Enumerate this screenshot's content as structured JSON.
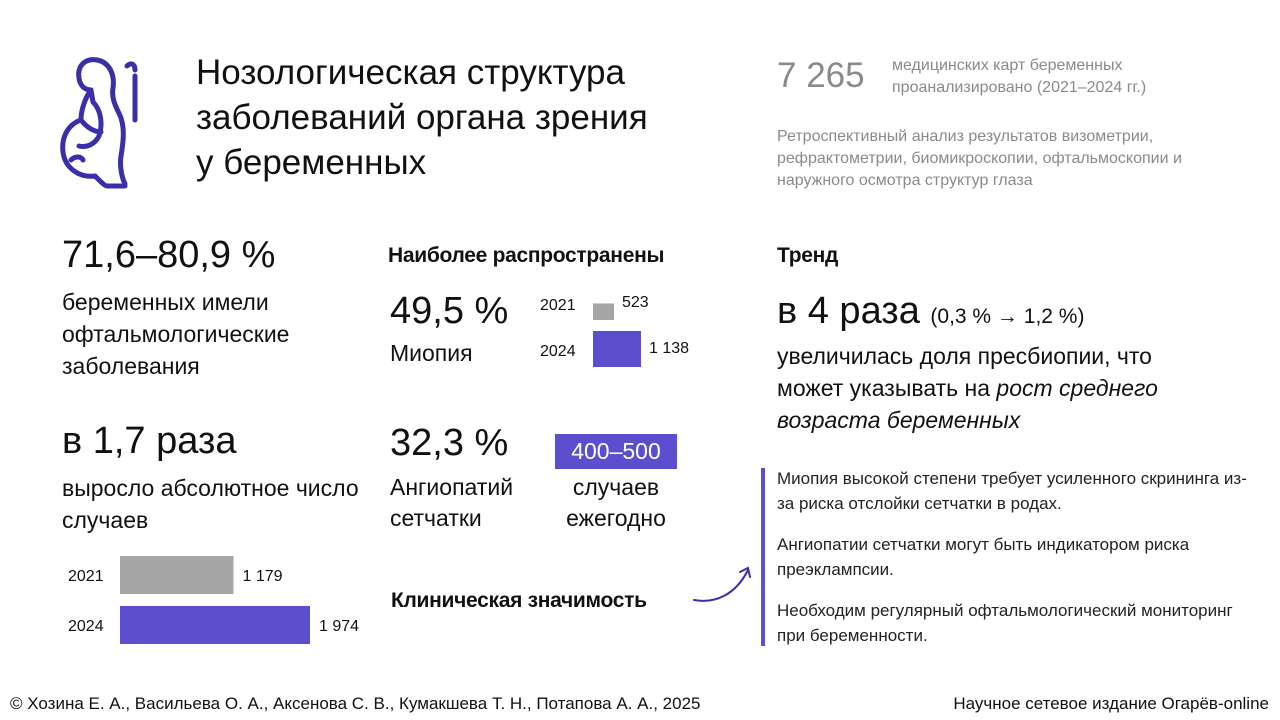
{
  "header": {
    "title_lines": [
      "Нозологическая структура",
      "заболеваний органа зрения",
      "у беременных"
    ],
    "records_count": "7 265",
    "records_desc": "медицинских карт беременных проанализировано (2021–2024 гг.)",
    "method": "Ретроспективный анализ результатов визометрии, рефрактометрии, биомикроскопии, офтальмоскопии и наружного осмотра структур глаза"
  },
  "left": {
    "share_value": "71,6–80,9 %",
    "share_desc": "беременных имели офтальмологические заболевания",
    "growth_value": "в 1,7 раза",
    "growth_desc": "выросло абсолютное число случаев"
  },
  "middle": {
    "heading": "Наиболее распространены",
    "myopia_value": "49,5 %",
    "myopia_label": "Миопия",
    "angio_value": "32,3 %",
    "angio_label": "Ангиопатий сетчатки",
    "angio_range": "400–500",
    "angio_range_desc": "случаев ежегодно",
    "clinical_heading": "Клиническая значимость"
  },
  "right": {
    "heading": "Тренд",
    "trend_value": "в 4 раза",
    "trend_sub": "(0,3 % → 1,2 %)",
    "trend_desc_plain": "увеличилась доля пресбиопии, что может указывать на",
    "trend_desc_italic": "рост среднего возраста беременных",
    "notes": [
      "Миопия высокой степени требует усиленного скрининга из-за риска отслойки сетчатки в родах.",
      "Ангиопатии сетчатки могут быть индикатором риска преэклампсии.",
      "Необходим регулярный офтальмологический мониторинг при беременности."
    ]
  },
  "footer": {
    "left": "© Хозина Е. А., Васильева О. А., Аксенова С. В., Кумакшева Т. Н., Потапова А. А., 2025",
    "right": "Научное сетевое издание Огарёв-online"
  },
  "colors": {
    "accent": "#5b4fcf",
    "bar_2021": "#a6a6a6",
    "muted_text": "#8a8a8a"
  },
  "icons": [
    "pregnant-woman-icon",
    "curved-arrow-icon"
  ],
  "chart_data": [
    {
      "type": "bar",
      "orientation": "horizontal",
      "categories": [
        "2021",
        "2024"
      ],
      "values": [
        1179,
        1974
      ],
      "value_labels": [
        "1 179",
        "1 974"
      ],
      "bar_colors": [
        "#a6a6a6",
        "#5b4fcf"
      ]
    },
    {
      "type": "bar",
      "orientation": "vertical",
      "categories": [
        "2021",
        "2024"
      ],
      "values": [
        523,
        1138
      ],
      "value_labels": [
        "523",
        "1 138"
      ],
      "bar_colors": [
        "#a6a6a6",
        "#5b4fcf"
      ]
    }
  ]
}
